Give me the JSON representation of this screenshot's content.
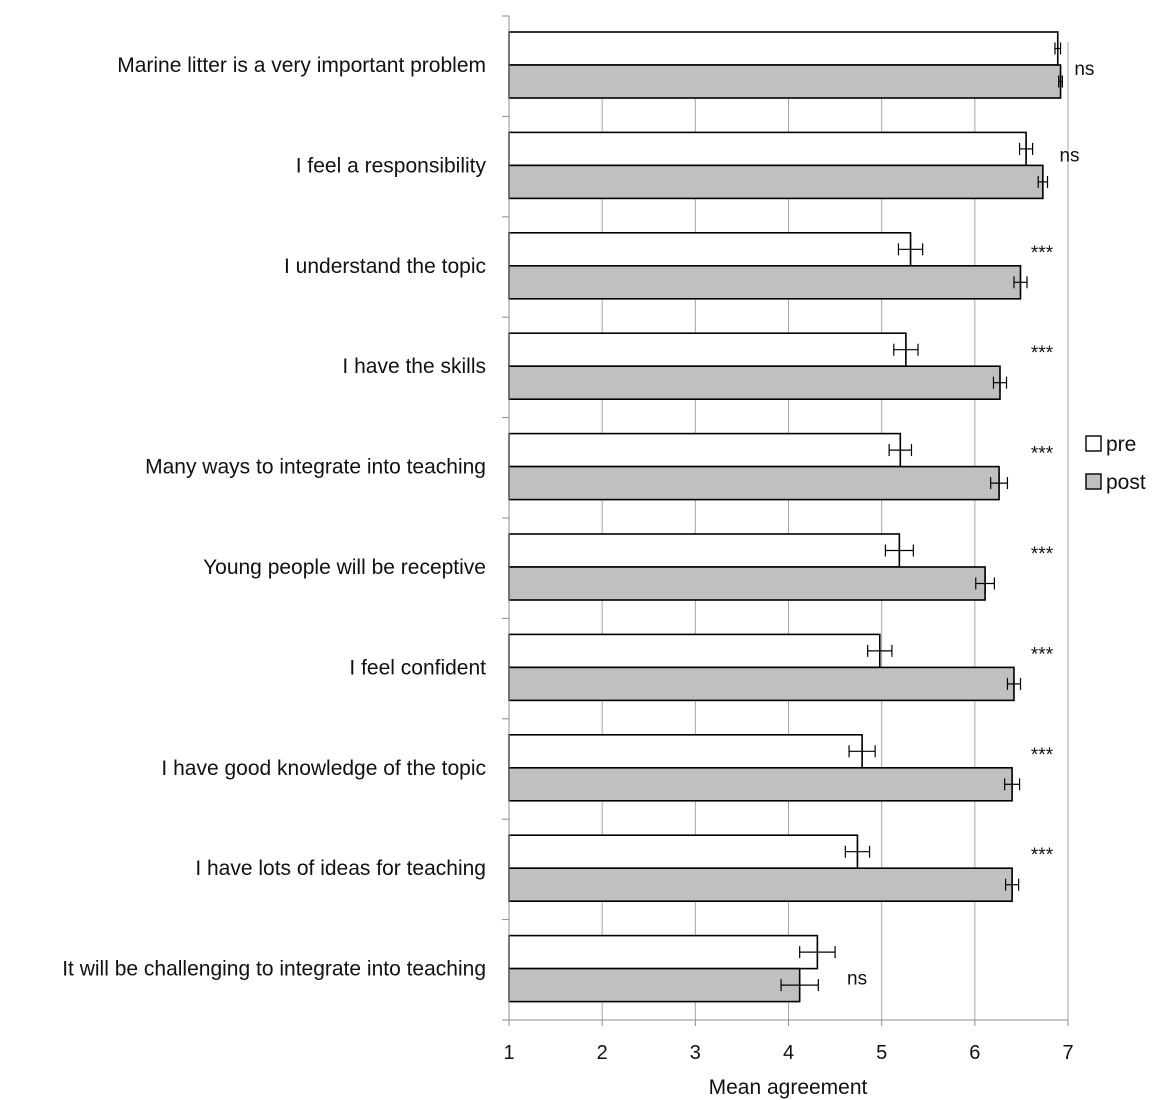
{
  "chart_data": {
    "type": "bar",
    "orientation": "horizontal",
    "xlabel": "Mean agreement",
    "xlim": [
      1,
      7
    ],
    "xticks": [
      1,
      2,
      3,
      4,
      5,
      6,
      7
    ],
    "grid": "vertical",
    "legend_position": "right",
    "categories": [
      "Marine litter is a very important problem",
      "I feel a responsibility",
      "I understand the topic",
      "I have the skills",
      "Many ways to integrate into teaching",
      "Young people will be receptive",
      "I feel confident",
      "I have good knowledge of the topic",
      "I have lots of ideas for teaching",
      "It will be challenging to integrate into teaching"
    ],
    "series": [
      {
        "name": "pre",
        "color": "#ffffff",
        "values": [
          6.89,
          6.55,
          5.31,
          5.26,
          5.2,
          5.19,
          4.98,
          4.79,
          4.74,
          4.31
        ],
        "errors": [
          0.03,
          0.07,
          0.13,
          0.13,
          0.12,
          0.15,
          0.13,
          0.14,
          0.13,
          0.19
        ]
      },
      {
        "name": "post",
        "color": "#c0c0c0",
        "values": [
          6.92,
          6.73,
          6.49,
          6.27,
          6.26,
          6.11,
          6.42,
          6.4,
          6.4,
          4.12
        ],
        "errors": [
          0.02,
          0.05,
          0.07,
          0.07,
          0.09,
          0.1,
          0.07,
          0.08,
          0.07,
          0.2
        ]
      }
    ],
    "significance": [
      "ns",
      "ns",
      "***",
      "***",
      "***",
      "***",
      "***",
      "***",
      "***",
      "ns"
    ]
  }
}
